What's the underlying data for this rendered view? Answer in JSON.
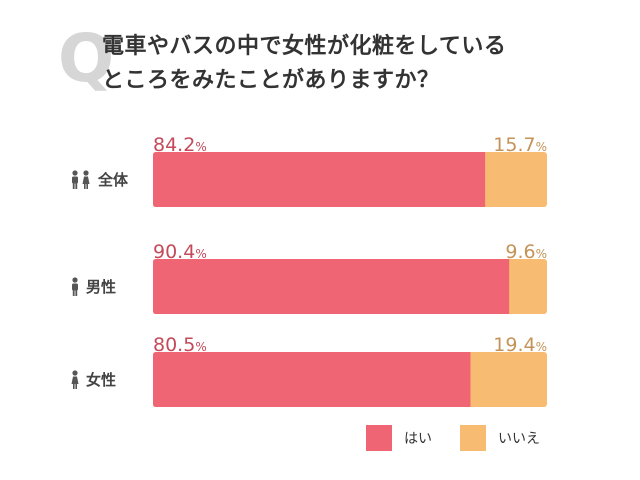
{
  "title": {
    "q": "Q",
    "line1": "電車やバスの中で女性が化粧をしている",
    "line2": "ところをみたことがありますか？"
  },
  "colors": {
    "yes": "#f06574",
    "no": "#f7bc72",
    "yes_text": "#c44a5a",
    "no_text": "#c49358"
  },
  "chart_data": {
    "type": "bar",
    "orientation": "horizontal-stacked-100",
    "categories": [
      "全体",
      "男性",
      "女性"
    ],
    "category_icons": [
      "people-icon",
      "man-icon",
      "woman-icon"
    ],
    "series": [
      {
        "name": "はい",
        "values": [
          84.2,
          90.4,
          80.5
        ]
      },
      {
        "name": "いいえ",
        "values": [
          15.7,
          9.6,
          19.4
        ]
      }
    ],
    "unit": "%",
    "legend_position": "bottom-right"
  },
  "legend": {
    "yes": "はい",
    "no": "いいえ"
  },
  "unit_label": "%"
}
